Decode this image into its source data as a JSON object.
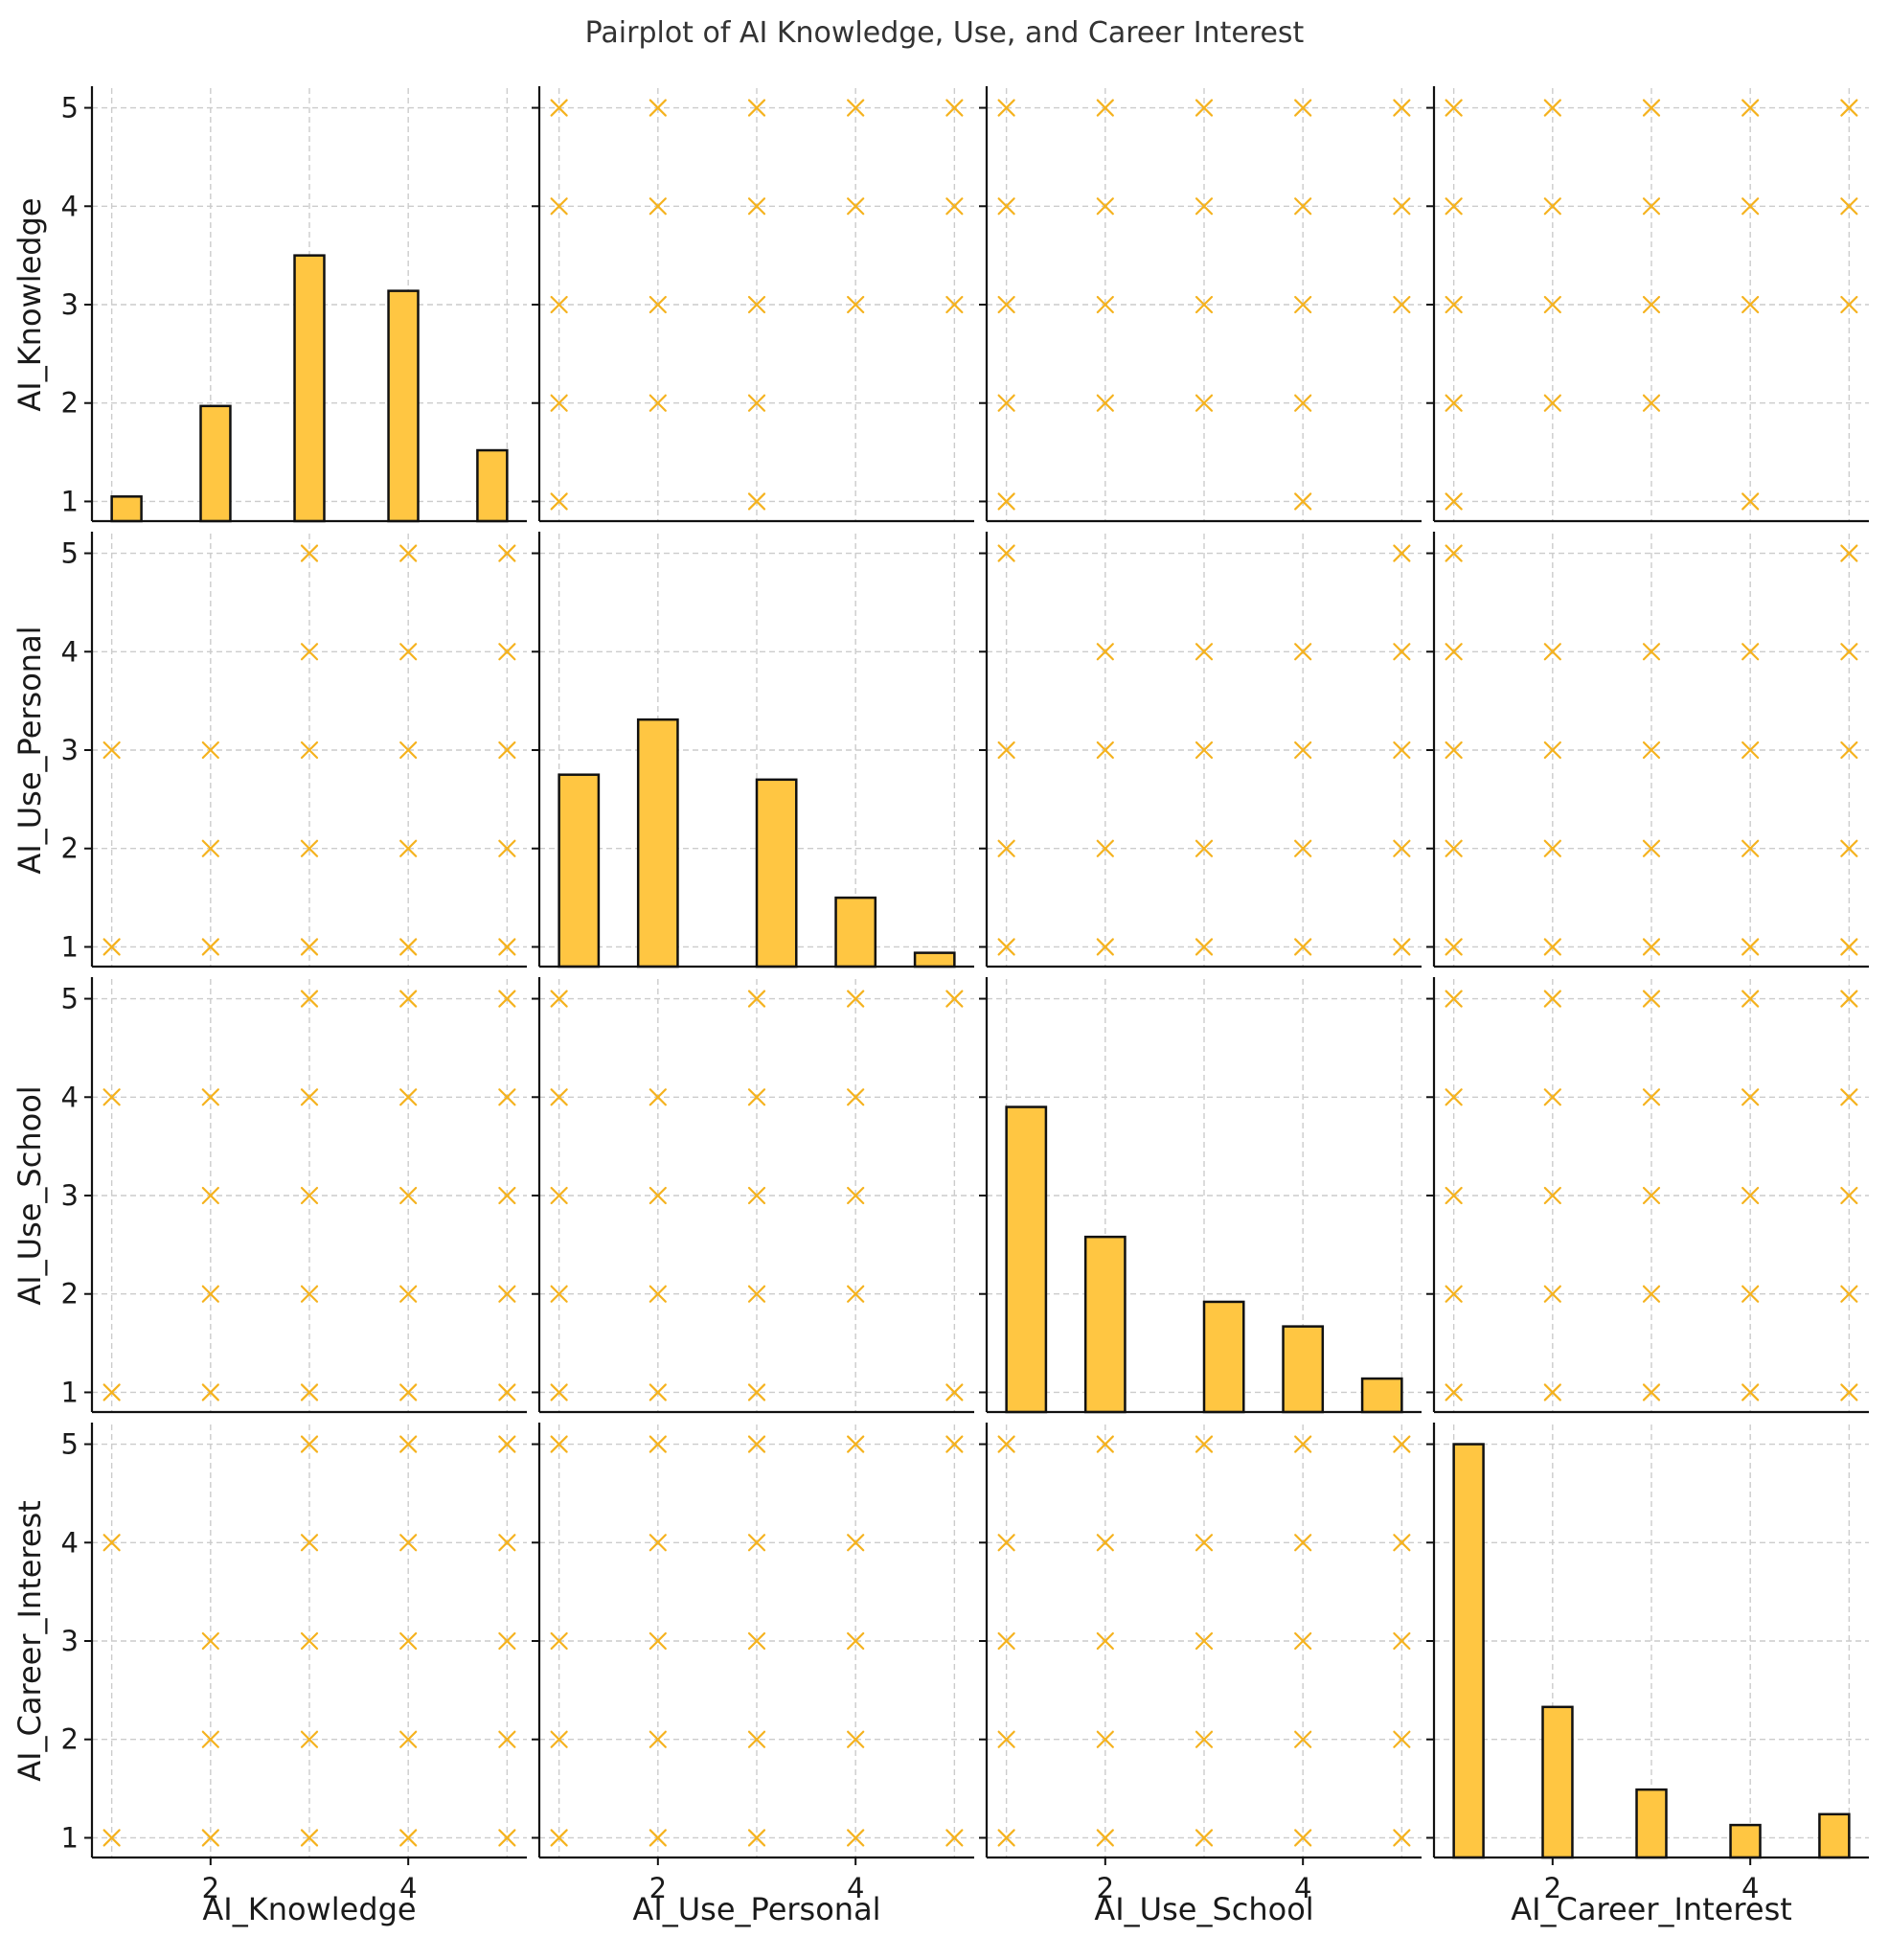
{
  "chart_data": {
    "type": "scatter",
    "title": "Pairplot of AI Knowledge, Use, and Career Interest",
    "variables": [
      "AI_Knowledge",
      "AI_Use_Personal",
      "AI_Use_School",
      "AI_Career_Interest"
    ],
    "axis_range": [
      0.8,
      5.2
    ],
    "y_ticks": [
      1,
      2,
      3,
      4,
      5
    ],
    "x_ticks": [
      2,
      4
    ],
    "grid": true,
    "marker": "x",
    "colors": {
      "bar_fill": "#ffc642",
      "bar_edge": "#111111",
      "marker": "#f5b21e",
      "grid": "#cccccc",
      "axis": "#111111"
    },
    "histograms": [
      {
        "variable": "AI_Knowledge",
        "bins": [
          {
            "x0": 1.0,
            "x1": 1.3,
            "height": 1.05
          },
          {
            "x0": 1.9,
            "x1": 2.2,
            "height": 1.97
          },
          {
            "x0": 2.85,
            "x1": 3.15,
            "height": 3.5
          },
          {
            "x0": 3.8,
            "x1": 4.1,
            "height": 3.14
          },
          {
            "x0": 4.7,
            "x1": 5.0,
            "height": 1.52
          }
        ]
      },
      {
        "variable": "AI_Use_Personal",
        "bins": [
          {
            "x0": 1.0,
            "x1": 1.4,
            "height": 2.75
          },
          {
            "x0": 1.8,
            "x1": 2.2,
            "height": 3.31
          },
          {
            "x0": 3.0,
            "x1": 3.4,
            "height": 2.7
          },
          {
            "x0": 3.8,
            "x1": 4.2,
            "height": 1.5
          },
          {
            "x0": 4.6,
            "x1": 5.0,
            "height": 0.94
          }
        ]
      },
      {
        "variable": "AI_Use_School",
        "bins": [
          {
            "x0": 1.0,
            "x1": 1.4,
            "height": 3.9
          },
          {
            "x0": 1.8,
            "x1": 2.2,
            "height": 2.58
          },
          {
            "x0": 3.0,
            "x1": 3.4,
            "height": 1.92
          },
          {
            "x0": 3.8,
            "x1": 4.2,
            "height": 1.67
          },
          {
            "x0": 4.6,
            "x1": 5.0,
            "height": 1.14
          }
        ]
      },
      {
        "variable": "AI_Career_Interest",
        "bins": [
          {
            "x0": 1.0,
            "x1": 1.3,
            "height": 5.0
          },
          {
            "x0": 1.9,
            "x1": 2.2,
            "height": 2.33
          },
          {
            "x0": 2.85,
            "x1": 3.15,
            "height": 1.49
          },
          {
            "x0": 3.8,
            "x1": 4.1,
            "height": 1.13
          },
          {
            "x0": 4.7,
            "x1": 5.0,
            "height": 1.24
          }
        ]
      }
    ],
    "scatter_panels": [
      {
        "row": 0,
        "col": 1,
        "x": "AI_Use_Personal",
        "y": "AI_Knowledge",
        "points": [
          [
            1,
            5
          ],
          [
            2,
            5
          ],
          [
            3,
            5
          ],
          [
            4,
            5
          ],
          [
            5,
            5
          ],
          [
            1,
            4
          ],
          [
            2,
            4
          ],
          [
            3,
            4
          ],
          [
            4,
            4
          ],
          [
            5,
            4
          ],
          [
            1,
            3
          ],
          [
            2,
            3
          ],
          [
            3,
            3
          ],
          [
            4,
            3
          ],
          [
            5,
            3
          ],
          [
            1,
            2
          ],
          [
            2,
            2
          ],
          [
            3,
            2
          ],
          [
            1,
            1
          ],
          [
            3,
            1
          ]
        ]
      },
      {
        "row": 0,
        "col": 2,
        "x": "AI_Use_School",
        "y": "AI_Knowledge",
        "points": [
          [
            1,
            5
          ],
          [
            2,
            5
          ],
          [
            3,
            5
          ],
          [
            4,
            5
          ],
          [
            5,
            5
          ],
          [
            1,
            4
          ],
          [
            2,
            4
          ],
          [
            3,
            4
          ],
          [
            4,
            4
          ],
          [
            5,
            4
          ],
          [
            1,
            3
          ],
          [
            2,
            3
          ],
          [
            3,
            3
          ],
          [
            4,
            3
          ],
          [
            5,
            3
          ],
          [
            1,
            2
          ],
          [
            2,
            2
          ],
          [
            3,
            2
          ],
          [
            4,
            2
          ],
          [
            1,
            1
          ],
          [
            4,
            1
          ]
        ]
      },
      {
        "row": 0,
        "col": 3,
        "x": "AI_Career_Interest",
        "y": "AI_Knowledge",
        "points": [
          [
            1,
            5
          ],
          [
            2,
            5
          ],
          [
            3,
            5
          ],
          [
            4,
            5
          ],
          [
            5,
            5
          ],
          [
            1,
            4
          ],
          [
            2,
            4
          ],
          [
            3,
            4
          ],
          [
            4,
            4
          ],
          [
            5,
            4
          ],
          [
            1,
            3
          ],
          [
            2,
            3
          ],
          [
            3,
            3
          ],
          [
            4,
            3
          ],
          [
            5,
            3
          ],
          [
            1,
            2
          ],
          [
            2,
            2
          ],
          [
            3,
            2
          ],
          [
            1,
            1
          ],
          [
            4,
            1
          ]
        ]
      },
      {
        "row": 1,
        "col": 0,
        "x": "AI_Knowledge",
        "y": "AI_Use_Personal",
        "points": [
          [
            3,
            5
          ],
          [
            4,
            5
          ],
          [
            5,
            5
          ],
          [
            3,
            4
          ],
          [
            4,
            4
          ],
          [
            5,
            4
          ],
          [
            1,
            3
          ],
          [
            2,
            3
          ],
          [
            3,
            3
          ],
          [
            4,
            3
          ],
          [
            5,
            3
          ],
          [
            2,
            2
          ],
          [
            3,
            2
          ],
          [
            4,
            2
          ],
          [
            5,
            2
          ],
          [
            1,
            1
          ],
          [
            2,
            1
          ],
          [
            3,
            1
          ],
          [
            4,
            1
          ],
          [
            5,
            1
          ]
        ]
      },
      {
        "row": 1,
        "col": 2,
        "x": "AI_Use_School",
        "y": "AI_Use_Personal",
        "points": [
          [
            1,
            5
          ],
          [
            5,
            5
          ],
          [
            2,
            4
          ],
          [
            3,
            4
          ],
          [
            4,
            4
          ],
          [
            5,
            4
          ],
          [
            1,
            3
          ],
          [
            2,
            3
          ],
          [
            3,
            3
          ],
          [
            4,
            3
          ],
          [
            5,
            3
          ],
          [
            1,
            2
          ],
          [
            2,
            2
          ],
          [
            3,
            2
          ],
          [
            4,
            2
          ],
          [
            5,
            2
          ],
          [
            1,
            1
          ],
          [
            2,
            1
          ],
          [
            3,
            1
          ],
          [
            4,
            1
          ],
          [
            5,
            1
          ]
        ]
      },
      {
        "row": 1,
        "col": 3,
        "x": "AI_Career_Interest",
        "y": "AI_Use_Personal",
        "points": [
          [
            1,
            5
          ],
          [
            5,
            5
          ],
          [
            1,
            4
          ],
          [
            2,
            4
          ],
          [
            3,
            4
          ],
          [
            4,
            4
          ],
          [
            5,
            4
          ],
          [
            1,
            3
          ],
          [
            2,
            3
          ],
          [
            3,
            3
          ],
          [
            4,
            3
          ],
          [
            5,
            3
          ],
          [
            1,
            2
          ],
          [
            2,
            2
          ],
          [
            3,
            2
          ],
          [
            4,
            2
          ],
          [
            5,
            2
          ],
          [
            1,
            1
          ],
          [
            2,
            1
          ],
          [
            3,
            1
          ],
          [
            4,
            1
          ],
          [
            5,
            1
          ]
        ]
      },
      {
        "row": 2,
        "col": 0,
        "x": "AI_Knowledge",
        "y": "AI_Use_School",
        "points": [
          [
            3,
            5
          ],
          [
            4,
            5
          ],
          [
            5,
            5
          ],
          [
            1,
            4
          ],
          [
            2,
            4
          ],
          [
            3,
            4
          ],
          [
            4,
            4
          ],
          [
            5,
            4
          ],
          [
            2,
            3
          ],
          [
            3,
            3
          ],
          [
            4,
            3
          ],
          [
            5,
            3
          ],
          [
            2,
            2
          ],
          [
            3,
            2
          ],
          [
            4,
            2
          ],
          [
            5,
            2
          ],
          [
            1,
            1
          ],
          [
            2,
            1
          ],
          [
            3,
            1
          ],
          [
            4,
            1
          ],
          [
            5,
            1
          ]
        ]
      },
      {
        "row": 2,
        "col": 1,
        "x": "AI_Use_Personal",
        "y": "AI_Use_School",
        "points": [
          [
            1,
            5
          ],
          [
            3,
            5
          ],
          [
            4,
            5
          ],
          [
            5,
            5
          ],
          [
            1,
            4
          ],
          [
            2,
            4
          ],
          [
            3,
            4
          ],
          [
            4,
            4
          ],
          [
            1,
            3
          ],
          [
            2,
            3
          ],
          [
            3,
            3
          ],
          [
            4,
            3
          ],
          [
            1,
            2
          ],
          [
            2,
            2
          ],
          [
            3,
            2
          ],
          [
            4,
            2
          ],
          [
            1,
            1
          ],
          [
            2,
            1
          ],
          [
            3,
            1
          ],
          [
            5,
            1
          ]
        ]
      },
      {
        "row": 2,
        "col": 3,
        "x": "AI_Career_Interest",
        "y": "AI_Use_School",
        "points": [
          [
            1,
            5
          ],
          [
            2,
            5
          ],
          [
            3,
            5
          ],
          [
            4,
            5
          ],
          [
            5,
            5
          ],
          [
            1,
            4
          ],
          [
            2,
            4
          ],
          [
            3,
            4
          ],
          [
            4,
            4
          ],
          [
            5,
            4
          ],
          [
            1,
            3
          ],
          [
            2,
            3
          ],
          [
            3,
            3
          ],
          [
            4,
            3
          ],
          [
            5,
            3
          ],
          [
            1,
            2
          ],
          [
            2,
            2
          ],
          [
            3,
            2
          ],
          [
            4,
            2
          ],
          [
            5,
            2
          ],
          [
            1,
            1
          ],
          [
            2,
            1
          ],
          [
            3,
            1
          ],
          [
            4,
            1
          ],
          [
            5,
            1
          ]
        ]
      },
      {
        "row": 3,
        "col": 0,
        "x": "AI_Knowledge",
        "y": "AI_Career_Interest",
        "points": [
          [
            3,
            5
          ],
          [
            4,
            5
          ],
          [
            5,
            5
          ],
          [
            1,
            4
          ],
          [
            3,
            4
          ],
          [
            4,
            4
          ],
          [
            5,
            4
          ],
          [
            2,
            3
          ],
          [
            3,
            3
          ],
          [
            4,
            3
          ],
          [
            5,
            3
          ],
          [
            2,
            2
          ],
          [
            3,
            2
          ],
          [
            4,
            2
          ],
          [
            5,
            2
          ],
          [
            1,
            1
          ],
          [
            2,
            1
          ],
          [
            3,
            1
          ],
          [
            4,
            1
          ],
          [
            5,
            1
          ]
        ]
      },
      {
        "row": 3,
        "col": 1,
        "x": "AI_Use_Personal",
        "y": "AI_Career_Interest",
        "points": [
          [
            1,
            5
          ],
          [
            2,
            5
          ],
          [
            3,
            5
          ],
          [
            4,
            5
          ],
          [
            5,
            5
          ],
          [
            2,
            4
          ],
          [
            3,
            4
          ],
          [
            4,
            4
          ],
          [
            1,
            3
          ],
          [
            2,
            3
          ],
          [
            3,
            3
          ],
          [
            4,
            3
          ],
          [
            1,
            2
          ],
          [
            2,
            2
          ],
          [
            3,
            2
          ],
          [
            4,
            2
          ],
          [
            1,
            1
          ],
          [
            2,
            1
          ],
          [
            3,
            1
          ],
          [
            4,
            1
          ],
          [
            5,
            1
          ]
        ]
      },
      {
        "row": 3,
        "col": 2,
        "x": "AI_Use_School",
        "y": "AI_Career_Interest",
        "points": [
          [
            1,
            5
          ],
          [
            2,
            5
          ],
          [
            3,
            5
          ],
          [
            4,
            5
          ],
          [
            5,
            5
          ],
          [
            1,
            4
          ],
          [
            2,
            4
          ],
          [
            3,
            4
          ],
          [
            4,
            4
          ],
          [
            5,
            4
          ],
          [
            1,
            3
          ],
          [
            2,
            3
          ],
          [
            3,
            3
          ],
          [
            4,
            3
          ],
          [
            5,
            3
          ],
          [
            1,
            2
          ],
          [
            2,
            2
          ],
          [
            3,
            2
          ],
          [
            4,
            2
          ],
          [
            5,
            2
          ],
          [
            1,
            1
          ],
          [
            2,
            1
          ],
          [
            3,
            1
          ],
          [
            4,
            1
          ],
          [
            5,
            1
          ]
        ]
      }
    ]
  }
}
